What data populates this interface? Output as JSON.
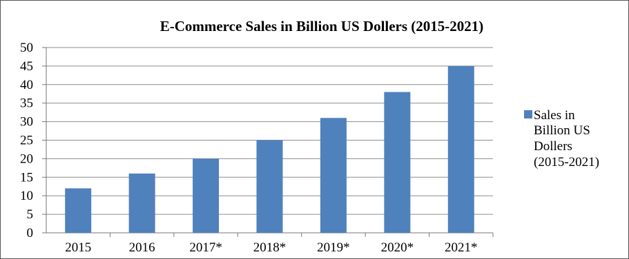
{
  "chart_data": {
    "type": "bar",
    "title": "E-Commerce Sales in Billion US Dollers (2015-2021)",
    "xlabel": "",
    "ylabel": "",
    "categories": [
      "2015",
      "2016",
      "2017*",
      "2018*",
      "2019*",
      "2020*",
      "2021*"
    ],
    "series": [
      {
        "name": "Sales in Billion US Dollers (2015-2021)",
        "legend_lines": [
          "Sales in",
          "Billion US",
          "Dollers",
          "(2015-2021)"
        ],
        "values": [
          12,
          16,
          20,
          25,
          31,
          38,
          45
        ],
        "color": "#4F81BD"
      }
    ],
    "ylim": [
      0,
      50
    ],
    "yticks": [
      "0",
      "5",
      "10",
      "15",
      "20",
      "25",
      "30",
      "35",
      "40",
      "45",
      "50"
    ],
    "grid": true,
    "legend_position": "right"
  }
}
